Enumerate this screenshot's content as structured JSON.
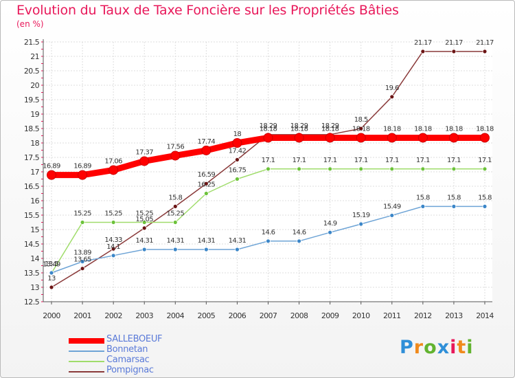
{
  "chart_data": {
    "type": "line",
    "title": "Evolution du Taux de Taxe Foncière sur les Propriétés Bâties",
    "ylabel": "(en %)",
    "xlabel": "",
    "ylim": [
      12.5,
      21.5
    ],
    "yticks": [
      "12.5",
      "13",
      "13.5",
      "14",
      "14.5",
      "15",
      "15.5",
      "16",
      "16.5",
      "17",
      "17.5",
      "18",
      "18.5",
      "19",
      "19.5",
      "20",
      "20.5",
      "21",
      "21.5"
    ],
    "categories": [
      "2000",
      "2001",
      "2002",
      "2003",
      "2004",
      "2005",
      "2006",
      "2007",
      "2008",
      "2009",
      "2010",
      "2011",
      "2012",
      "2013",
      "2014"
    ],
    "grid": true,
    "legend_position": "bottom-left",
    "series": [
      {
        "name": "SALLEBOEUF",
        "color": "#ff0000",
        "marker": "#ff0000",
        "thick": true,
        "values": [
          16.89,
          16.89,
          17.06,
          17.37,
          17.56,
          17.74,
          18,
          18.18,
          18.18,
          18.18,
          18.18,
          18.18,
          18.18,
          18.18,
          18.18
        ],
        "labels": [
          "16.89",
          "16.89",
          "17.06",
          "17.37",
          "17.56",
          "17.74",
          "18",
          "18.18",
          "18.18",
          "18.18",
          "18.18",
          "18.18",
          "18.18",
          "18.18",
          "18.18"
        ]
      },
      {
        "name": "Bonnetan",
        "color": "#6ea4d6",
        "marker": "#3b86c8",
        "thick": false,
        "values": [
          13.5,
          13.89,
          14.1,
          14.31,
          14.31,
          14.31,
          14.31,
          14.6,
          14.6,
          14.9,
          15.19,
          15.49,
          15.8,
          15.8,
          15.8
        ],
        "labels": [
          "13.5",
          "13.89",
          "14.1",
          "14.31",
          "14.31",
          "14.31",
          "14.31",
          "14.6",
          "14.6",
          "14.9",
          "15.19",
          "15.49",
          "15.8",
          "15.8",
          "15.8"
        ]
      },
      {
        "name": "Camarsac",
        "color": "#9fdc6a",
        "marker": "#6cc23a",
        "thick": false,
        "values": [
          13.49,
          15.25,
          15.25,
          15.25,
          15.25,
          16.25,
          16.75,
          17.1,
          17.1,
          17.1,
          17.1,
          17.1,
          17.1,
          17.1,
          17.1
        ],
        "labels": [
          "13.49",
          "15.25",
          "15.25",
          "15.25",
          "15.25",
          "16.25",
          "16.75",
          "17.1",
          "17.1",
          "17.1",
          "17.1",
          "17.1",
          "17.1",
          "17.1",
          "17.1"
        ]
      },
      {
        "name": "Pompignac",
        "color": "#8a3a3a",
        "marker": "#6b1414",
        "thick": false,
        "values": [
          13,
          13.65,
          14.33,
          15.05,
          15.8,
          16.59,
          17.42,
          18.29,
          18.29,
          18.29,
          18.5,
          19.6,
          21.17,
          21.17,
          21.17
        ],
        "labels": [
          "13",
          "13.65",
          "14.33",
          "15.05",
          "15.8",
          "16.59",
          "17.42",
          "18.29",
          "18.29",
          "18.29",
          "18.5",
          "19.6",
          "21.17",
          "21.17",
          "21.17"
        ]
      }
    ]
  },
  "brand": {
    "letters": [
      "P",
      "r",
      "o",
      "x",
      "i",
      "t",
      "i"
    ],
    "colors": [
      "#2f8fd8",
      "#f08a1c",
      "#62b32f",
      "#2f8fd8",
      "#e8185a",
      "#f08a1c",
      "#62b32f"
    ]
  }
}
